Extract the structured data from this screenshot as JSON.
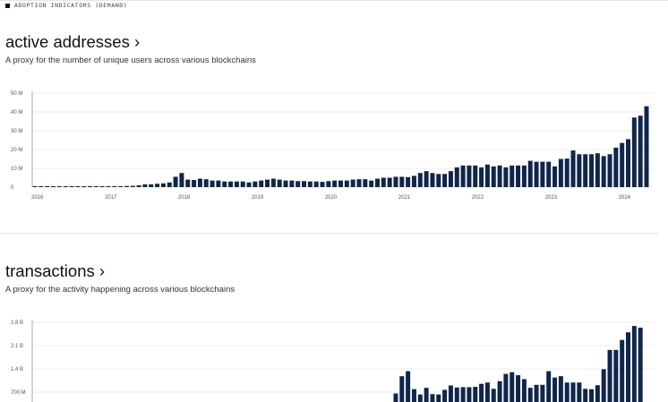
{
  "section_label": "ADOPTION INDICATORS (DEMAND)",
  "colors": {
    "bar": "#10264a",
    "grid": "#ececec"
  },
  "chart_data": [
    {
      "type": "bar",
      "title": "active addresses",
      "title_chevron": "›",
      "subtitle": "A proxy for the number of unique users across various blockchains",
      "unit": "M",
      "ylim": [
        0,
        50
      ],
      "y_ticks": [
        {
          "v": 0,
          "label": "0"
        },
        {
          "v": 10,
          "label": "10 M"
        },
        {
          "v": 20,
          "label": "20 M"
        },
        {
          "v": 30,
          "label": "30 M"
        },
        {
          "v": 40,
          "label": "40 M"
        },
        {
          "v": 50,
          "label": "50 M"
        }
      ],
      "x_ticks": [
        "2016",
        "2017",
        "2018",
        "2019",
        "2020",
        "2021",
        "2022",
        "2023",
        "2024"
      ],
      "start_month": "2016-01",
      "values": [
        0.5,
        0.5,
        0.5,
        0.5,
        0.5,
        0.5,
        0.5,
        0.5,
        0.5,
        0.5,
        0.5,
        0.5,
        0.5,
        0.5,
        0.5,
        0.6,
        0.7,
        1.0,
        1.5,
        1.5,
        1.8,
        2.0,
        2.5,
        5.5,
        7.5,
        4,
        3.8,
        4.5,
        4.2,
        3.5,
        3.5,
        3,
        3,
        3,
        3,
        2.5,
        3,
        3.5,
        4,
        4.5,
        4,
        3.5,
        3.5,
        3.2,
        3.2,
        3,
        3,
        2.8,
        3.2,
        3.5,
        3.5,
        3.5,
        4,
        4.2,
        4.2,
        3.5,
        4.5,
        5,
        5,
        5.5,
        5.5,
        5.3,
        6,
        7.5,
        8.5,
        7.5,
        7,
        7,
        8.5,
        10.5,
        11.5,
        11.5,
        11.5,
        10.5,
        12,
        11,
        11.5,
        10.5,
        11.5,
        11.5,
        11.5,
        14,
        13.5,
        13.5,
        13.5,
        11,
        15,
        15.2,
        19.5,
        17.5,
        17.5,
        17.5,
        18,
        16.5,
        17.5,
        21,
        23.5,
        25.5,
        37,
        38,
        43
      ]
    },
    {
      "type": "bar",
      "title": "transactions",
      "title_chevron": "›",
      "subtitle": "A proxy for the activity happening across various blockchains",
      "unit": "B",
      "ylim": [
        0,
        2.8
      ],
      "y_ticks": [
        {
          "v": 0.7,
          "label": "700 M"
        },
        {
          "v": 1.4,
          "label": "1.4 B"
        },
        {
          "v": 2.1,
          "label": "2.1 B"
        },
        {
          "v": 2.8,
          "label": "2.8 B"
        }
      ],
      "start_month": "2020-12",
      "values": [
        0.66,
        1.18,
        1.33,
        0.79,
        0.63,
        0.83,
        0.64,
        0.63,
        0.77,
        0.9,
        0.84,
        0.85,
        0.85,
        0.86,
        0.95,
        0.99,
        0.8,
        1.03,
        1.25,
        1.3,
        1.21,
        1.09,
        0.83,
        0.92,
        0.92,
        1.33,
        1.14,
        1.18,
        0.99,
        0.99,
        0.99,
        0.8,
        0.79,
        0.91,
        1.39,
        1.97,
        1.97,
        2.27,
        2.5,
        2.69,
        2.64
      ]
    }
  ]
}
